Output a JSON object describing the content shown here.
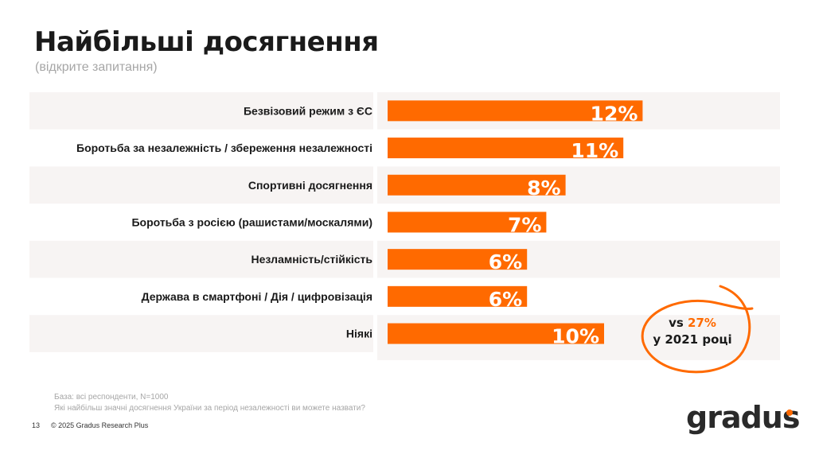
{
  "header": {
    "title": "Найбільші досягнення",
    "subtitle": "(відкрите запитання)"
  },
  "colors": {
    "bar": "#ff6a00",
    "stripe": "#f7f4f3",
    "accent": "#ff6a00"
  },
  "chart_data": {
    "type": "bar",
    "orientation": "horizontal",
    "categories": [
      "Безвізовий режим з ЄС",
      "Боротьба за незалежність / збереження незалежності",
      "Спортивні досягнення",
      "Боротьба з росією (рашистами/москалями)",
      "Незламність/стійкість",
      "Держава в смартфоні / Дія / цифровізація",
      "Ніякі"
    ],
    "values": [
      12,
      11,
      8,
      7,
      6,
      6,
      10
    ],
    "value_labels": [
      "12%",
      "11%",
      "8%",
      "7%",
      "6%",
      "6%",
      "10%"
    ],
    "grid": false
  },
  "callout": {
    "prefix": "vs",
    "value": "27%",
    "line2": "у 2021 році"
  },
  "notes": {
    "base": "База: всі респонденти, N=1000",
    "question": "Які найбільш значні досягнення України за період незалежності ви можете назвати?"
  },
  "footer": {
    "page": "13",
    "copyright": "© 2025 Gradus Research Plus"
  },
  "logo": {
    "text": "gradus"
  }
}
